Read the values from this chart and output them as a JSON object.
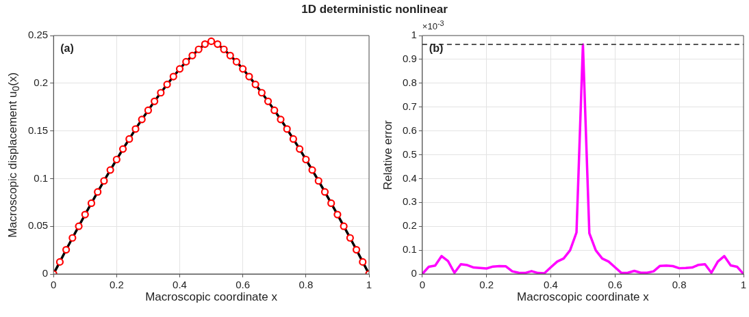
{
  "chart_data": [
    {
      "type": "line",
      "title": "1D deterministic nonlinear",
      "xlabel": "Macroscopic coordinate x",
      "ylabel": "Macroscopic  displacement  u$_{0}$(x)",
      "annotations": [
        "(a)"
      ],
      "x": [
        0,
        0.02,
        0.04,
        0.06,
        0.08,
        0.1,
        0.12,
        0.14,
        0.16,
        0.18,
        0.2,
        0.22,
        0.24,
        0.26,
        0.28,
        0.3,
        0.32,
        0.34,
        0.36,
        0.38,
        0.4,
        0.42,
        0.44,
        0.46,
        0.48,
        0.5,
        0.52,
        0.54,
        0.56,
        0.58,
        0.6,
        0.62,
        0.64,
        0.66,
        0.68,
        0.7,
        0.72,
        0.74,
        0.76,
        0.78,
        0.8,
        0.82,
        0.84,
        0.86,
        0.88,
        0.9,
        0.92,
        0.94,
        0.96,
        0.98,
        1
      ],
      "series": [
        {
          "type": "line",
          "color": "#000000",
          "marker": "none",
          "line_style": "solid",
          "values": [
            0,
            0.0126,
            0.0254,
            0.0378,
            0.05,
            0.0623,
            0.0742,
            0.086,
            0.0976,
            0.109,
            0.12,
            0.131,
            0.1415,
            0.152,
            0.162,
            0.1716,
            0.181,
            0.19,
            0.1987,
            0.207,
            0.215,
            0.2225,
            0.229,
            0.2355,
            0.241,
            0.244,
            0.241,
            0.2355,
            0.229,
            0.2225,
            0.215,
            0.207,
            0.1987,
            0.19,
            0.181,
            0.1716,
            0.162,
            0.152,
            0.1415,
            0.131,
            0.12,
            0.109,
            0.0976,
            0.086,
            0.0742,
            0.0623,
            0.05,
            0.0378,
            0.0254,
            0.0126,
            0
          ]
        },
        {
          "type": "scatter",
          "color": "#ff0000",
          "marker": "circle",
          "values": [
            0,
            0.0126,
            0.0254,
            0.0378,
            0.05,
            0.0623,
            0.0742,
            0.086,
            0.0976,
            0.109,
            0.12,
            0.131,
            0.1415,
            0.152,
            0.162,
            0.1716,
            0.181,
            0.19,
            0.1987,
            0.207,
            0.215,
            0.2225,
            0.229,
            0.2355,
            0.241,
            0.244,
            0.241,
            0.2355,
            0.229,
            0.2225,
            0.215,
            0.207,
            0.1987,
            0.19,
            0.181,
            0.1716,
            0.162,
            0.152,
            0.1415,
            0.131,
            0.12,
            0.109,
            0.0976,
            0.086,
            0.0742,
            0.0623,
            0.05,
            0.0378,
            0.0254,
            0.0126,
            0
          ]
        }
      ],
      "xlim": [
        0,
        1
      ],
      "xticks": [
        0,
        0.2,
        0.4,
        0.6,
        0.8,
        1
      ],
      "ylim": [
        0,
        0.25
      ],
      "yticks": [
        0,
        0.05,
        0.1,
        0.15,
        0.2,
        0.25
      ],
      "grid": true,
      "legend": false
    },
    {
      "type": "line",
      "xlabel": "Macroscopic coordinate x",
      "ylabel": "Relative error",
      "annotations": [
        "(b)",
        "×10$^{-3}$"
      ],
      "x": [
        0,
        0.02,
        0.04,
        0.06,
        0.08,
        0.1,
        0.12,
        0.14,
        0.16,
        0.18,
        0.2,
        0.22,
        0.24,
        0.26,
        0.28,
        0.3,
        0.32,
        0.34,
        0.36,
        0.38,
        0.4,
        0.42,
        0.44,
        0.46,
        0.48,
        0.5,
        0.52,
        0.54,
        0.56,
        0.58,
        0.6,
        0.62,
        0.64,
        0.66,
        0.68,
        0.7,
        0.72,
        0.74,
        0.76,
        0.78,
        0.8,
        0.82,
        0.84,
        0.86,
        0.88,
        0.9,
        0.92,
        0.94,
        0.96,
        0.98,
        1
      ],
      "series": [
        {
          "type": "line",
          "color": "#ff00ff",
          "marker": "none",
          "line_style": "solid",
          "values": [
            0,
            0.03,
            0.035,
            0.075,
            0.054,
            0.005,
            0.041,
            0.037,
            0.027,
            0.025,
            0.023,
            0.031,
            0.033,
            0.032,
            0.011,
            0.005,
            0.004,
            0.012,
            0.004,
            0.003,
            0.028,
            0.052,
            0.065,
            0.099,
            0.174,
            0.963,
            0.171,
            0.099,
            0.065,
            0.052,
            0.028,
            0.004,
            0.005,
            0.013,
            0.005,
            0.005,
            0.011,
            0.034,
            0.035,
            0.033,
            0.024,
            0.025,
            0.027,
            0.038,
            0.041,
            0.005,
            0.052,
            0.075,
            0.036,
            0.03,
            0
          ]
        }
      ],
      "ref_lines": [
        {
          "axis": "y",
          "value": 0.963,
          "color": "#555555",
          "line_style": "dashed"
        }
      ],
      "xlim": [
        0,
        1
      ],
      "xticks": [
        0,
        0.2,
        0.4,
        0.6,
        0.8,
        1
      ],
      "ylim": [
        0,
        1
      ],
      "yticks": [
        0,
        0.1,
        0.2,
        0.3,
        0.4,
        0.5,
        0.6,
        0.7,
        0.8,
        0.9,
        1
      ],
      "grid": true,
      "legend": false
    }
  ]
}
